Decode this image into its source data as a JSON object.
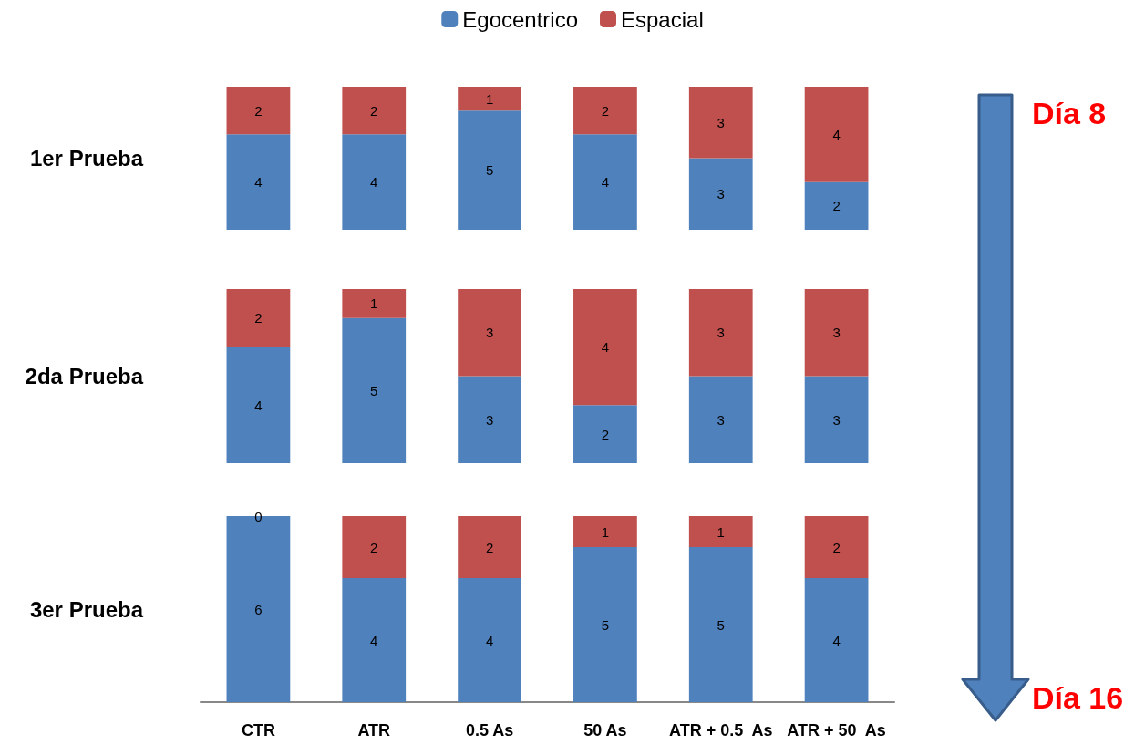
{
  "chart_data": [
    {
      "type": "bar",
      "stacked": true,
      "ylabel": "1er Prueba",
      "categories": [
        null,
        null,
        null,
        null,
        null,
        null
      ],
      "ylim": [
        0,
        6
      ],
      "data_labels": true,
      "legend": "top",
      "tick_labels": false,
      "annotations": [
        "Día 8",
        "Día 16"
      ],
      "series": [
        {
          "name": "Egocentrico",
          "color": "#4f81bd",
          "values": [
            4,
            4,
            5,
            4,
            3,
            2
          ]
        },
        {
          "name": "Espacial",
          "color": "#c0504d",
          "values": [
            2,
            2,
            1,
            2,
            3,
            4
          ]
        }
      ]
    },
    {
      "type": "bar",
      "stacked": true,
      "ylabel": "2da Prueba",
      "categories": [
        null,
        null,
        null,
        null,
        null,
        null
      ],
      "ylim": [
        0,
        6
      ],
      "data_labels": true,
      "tick_labels": false,
      "series": [
        {
          "color": "#4f81bd",
          "values": [
            4,
            5,
            3,
            2,
            3,
            3
          ]
        },
        {
          "color": "#c0504d",
          "values": [
            2,
            1,
            3,
            4,
            3,
            3
          ]
        }
      ]
    },
    {
      "type": "bar",
      "stacked": true,
      "ylabel": "3er Prueba",
      "categories": [
        "CTR",
        "ATR",
        "0.5 As",
        "50 As",
        "ATR + 0.5  As",
        "ATR + 50  As"
      ],
      "ylim": [
        0,
        6
      ],
      "data_labels": true,
      "tick_labels": "x",
      "series": [
        {
          "color": "#4f81bd",
          "values": [
            6,
            4,
            4,
            5,
            5,
            4
          ]
        },
        {
          "color": "#c0504d",
          "values": [
            0,
            2,
            2,
            1,
            1,
            2
          ]
        }
      ]
    }
  ]
}
